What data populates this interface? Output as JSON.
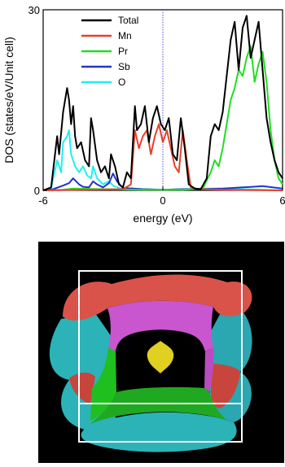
{
  "chart_data": {
    "type": "line",
    "xlabel": "energy (eV)",
    "ylabel": "DOS (states/eV/Unit cell)",
    "xlim": [
      -6,
      6
    ],
    "ylim": [
      0,
      30
    ],
    "xticks": [
      "-6",
      "0",
      "6"
    ],
    "yticks": [
      "0",
      "30"
    ],
    "fermi_level": 0,
    "legend_position": "top-left",
    "series": [
      {
        "name": "Total",
        "color": "#000000",
        "x": [
          -6.0,
          -5.6,
          -5.3,
          -5.2,
          -5.0,
          -4.8,
          -4.7,
          -4.6,
          -4.5,
          -4.4,
          -4.3,
          -4.1,
          -3.9,
          -3.7,
          -3.6,
          -3.5,
          -3.3,
          -3.1,
          -2.9,
          -2.7,
          -2.6,
          -2.4,
          -2.2,
          -2.0,
          -1.8,
          -1.6,
          -1.4,
          -1.3,
          -1.1,
          -0.9,
          -0.7,
          -0.5,
          -0.3,
          -0.1,
          0.1,
          0.3,
          0.5,
          0.7,
          0.9,
          1.1,
          1.3,
          1.6,
          1.9,
          2.2,
          2.4,
          2.6,
          2.8,
          3.0,
          3.2,
          3.4,
          3.6,
          3.8,
          4.0,
          4.2,
          4.4,
          4.6,
          4.8,
          5.0,
          5.2,
          5.4,
          5.6,
          5.8,
          6.0
        ],
        "y": [
          0,
          0.5,
          9,
          6,
          13,
          17,
          15,
          11,
          14,
          9,
          7,
          8,
          5,
          4,
          12,
          10,
          5,
          3,
          4,
          2,
          6,
          4,
          1,
          0.5,
          3,
          2,
          14,
          10,
          11,
          14,
          8,
          12,
          14,
          11,
          10,
          12,
          6,
          5,
          12,
          7,
          1,
          0.3,
          0.2,
          2,
          9,
          11,
          10,
          13,
          19,
          25,
          28,
          20,
          27,
          29,
          22,
          25,
          28,
          20,
          12,
          8,
          5,
          3,
          2
        ]
      },
      {
        "name": "Mn",
        "color": "#e8402b",
        "x": [
          -6.0,
          -4.0,
          -2.0,
          -1.6,
          -1.4,
          -1.2,
          -1.0,
          -0.8,
          -0.6,
          -0.4,
          -0.2,
          0.0,
          0.2,
          0.4,
          0.6,
          0.8,
          1.0,
          1.2,
          1.4,
          1.8,
          3.0,
          6.0
        ],
        "y": [
          0,
          0.1,
          0.2,
          1,
          10,
          7,
          9,
          10,
          6,
          9,
          11,
          8,
          10,
          7,
          4,
          3,
          10,
          5,
          0.5,
          0.2,
          0.1,
          0
        ]
      },
      {
        "name": "Pr",
        "color": "#22dd22",
        "x": [
          -6.0,
          -5.0,
          -4.5,
          -3.0,
          -1.0,
          1.0,
          2.0,
          2.4,
          2.6,
          2.8,
          3.0,
          3.2,
          3.4,
          3.6,
          3.8,
          4.0,
          4.2,
          4.4,
          4.6,
          4.8,
          5.0,
          5.2,
          5.4,
          5.6,
          5.8,
          6.0
        ],
        "y": [
          0,
          0.1,
          0.3,
          0.2,
          0.1,
          0.1,
          0.3,
          3,
          5,
          4,
          7,
          11,
          15,
          17,
          20,
          19,
          22,
          24,
          18,
          21,
          23,
          18,
          10,
          5,
          2,
          1
        ]
      },
      {
        "name": "Sb",
        "color": "#2233cc",
        "x": [
          -6.0,
          -5.5,
          -5.0,
          -4.7,
          -4.5,
          -4.2,
          -4.0,
          -3.7,
          -3.5,
          -3.3,
          -3.0,
          -2.7,
          -2.5,
          -2.3,
          -2.0,
          -1.5,
          -1.0,
          0.0,
          1.0,
          2.0,
          3.0,
          3.5,
          4.0,
          4.5,
          5.0,
          5.5,
          6.0
        ],
        "y": [
          0,
          0.2,
          0.8,
          1.2,
          2.0,
          1.0,
          0.6,
          0.5,
          1.5,
          1.0,
          0.5,
          1.2,
          2.8,
          1.5,
          0.4,
          0.3,
          0.2,
          0.1,
          0.2,
          0.2,
          0.3,
          0.4,
          0.5,
          0.6,
          0.7,
          0.5,
          0.3
        ]
      },
      {
        "name": "O",
        "color": "#22eeee",
        "x": [
          -6.0,
          -5.6,
          -5.3,
          -5.1,
          -5.0,
          -4.8,
          -4.7,
          -4.6,
          -4.5,
          -4.4,
          -4.2,
          -4.0,
          -3.8,
          -3.6,
          -3.5,
          -3.3,
          -3.0,
          -2.7,
          -2.5,
          -2.2,
          -2.0,
          -1.5,
          -1.0,
          0.0,
          1.0,
          2.0,
          3.0,
          4.0,
          5.0,
          6.0
        ],
        "y": [
          0,
          0.4,
          5,
          3,
          8,
          9,
          10,
          6,
          5,
          4,
          3,
          4,
          2.5,
          2,
          4,
          2,
          1,
          1.5,
          0.8,
          0.4,
          0.2,
          0.3,
          0.2,
          0.1,
          0.2,
          0.3,
          0.3,
          0.2,
          0.1,
          0
        ]
      }
    ]
  },
  "fermi_surface": {
    "background": "#000000",
    "frame_color": "#ffffff",
    "sheet_colors": {
      "outer_top": "#d9534a",
      "outer_side": "#2bb3b8",
      "inner_top": "#c955cf",
      "inner_side": "#1fbf1f",
      "pocket": "#e0d020"
    }
  }
}
